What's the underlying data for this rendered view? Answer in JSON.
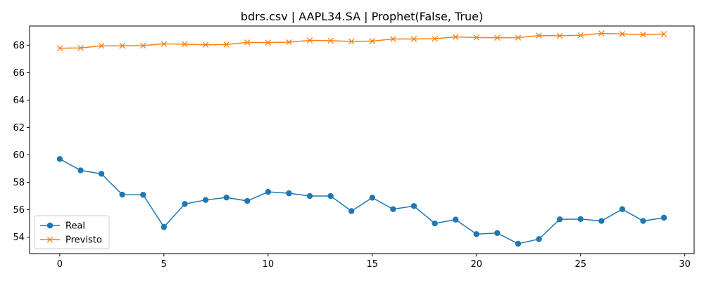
{
  "chart_data": {
    "type": "line",
    "title": "bdrs.csv | AAPL34.SA | Prophet(False, True)",
    "xlabel": "",
    "ylabel": "",
    "xlim": [
      -1.45,
      30.45
    ],
    "ylim": [
      52.8,
      69.4
    ],
    "xticks": [
      0,
      5,
      10,
      15,
      20,
      25,
      30
    ],
    "yticks": [
      54,
      56,
      58,
      60,
      62,
      64,
      66,
      68
    ],
    "grid": false,
    "legend": "lower-left",
    "x": [
      0,
      1,
      2,
      3,
      4,
      5,
      6,
      7,
      8,
      9,
      10,
      11,
      12,
      13,
      14,
      15,
      16,
      17,
      18,
      19,
      20,
      21,
      22,
      23,
      24,
      25,
      26,
      27,
      28,
      29
    ],
    "series": [
      {
        "name": "Real",
        "color": "#1f77b4",
        "marker": "circle",
        "values": [
          59.7,
          58.87,
          58.62,
          57.1,
          57.09,
          54.74,
          56.42,
          56.71,
          56.89,
          56.64,
          57.3,
          57.2,
          57.0,
          57.0,
          55.9,
          56.88,
          56.04,
          56.27,
          55.0,
          55.28,
          54.22,
          54.3,
          53.52,
          53.86,
          55.3,
          55.32,
          55.18,
          56.04,
          55.18,
          55.42
        ]
      },
      {
        "name": "Previsto",
        "color": "#ff7f0e",
        "marker": "x",
        "values": [
          67.78,
          67.8,
          67.95,
          67.95,
          67.97,
          68.1,
          68.07,
          68.03,
          68.05,
          68.2,
          68.19,
          68.22,
          68.35,
          68.33,
          68.27,
          68.3,
          68.45,
          68.45,
          68.48,
          68.6,
          68.56,
          68.54,
          68.55,
          68.7,
          68.69,
          68.72,
          68.86,
          68.82,
          68.77,
          68.81
        ]
      }
    ]
  }
}
